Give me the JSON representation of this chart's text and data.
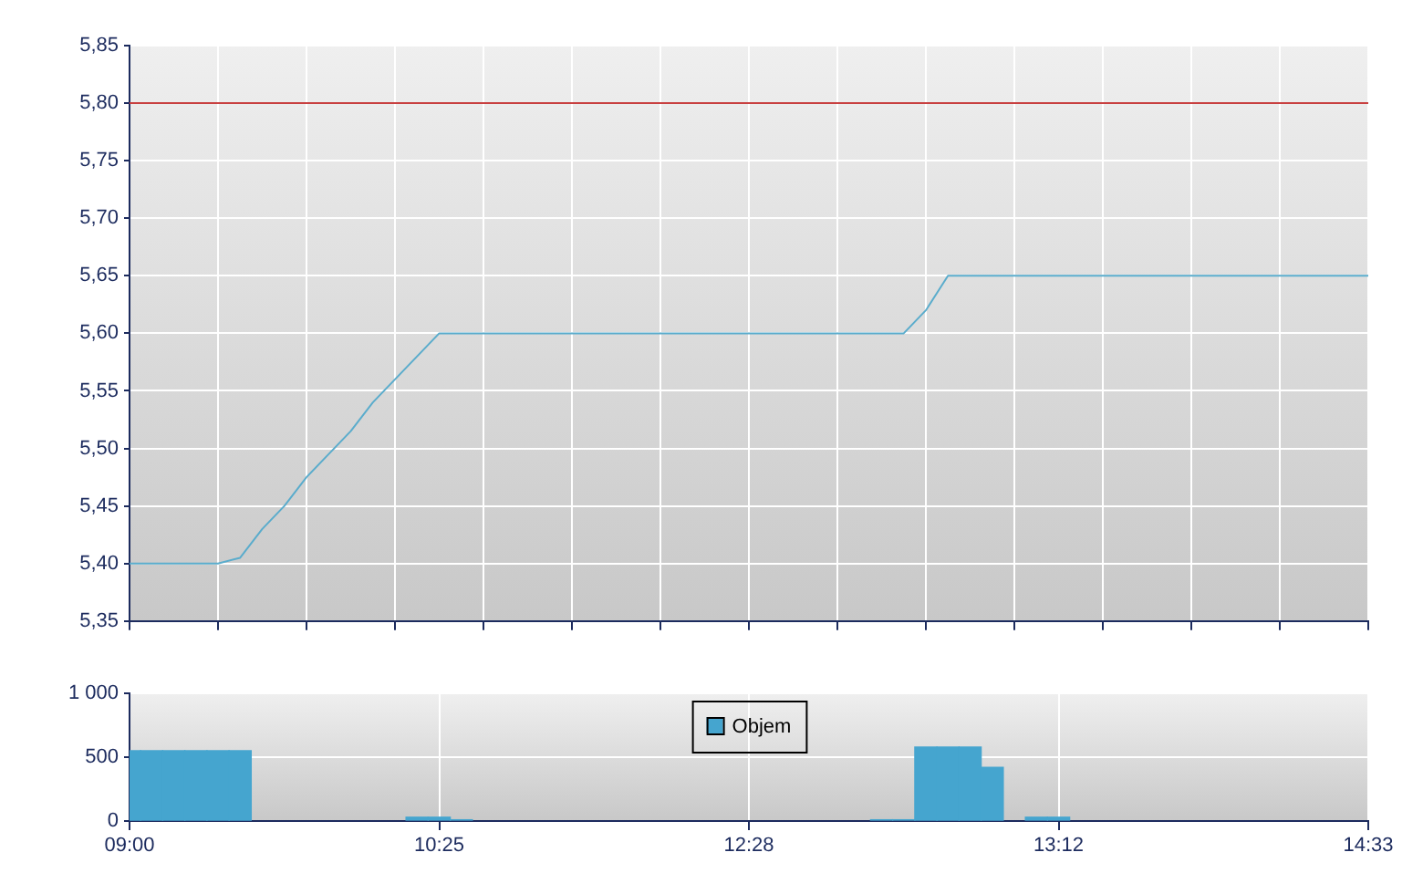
{
  "chart_data": [
    {
      "type": "line",
      "categories": [
        null,
        null,
        null,
        null,
        null,
        null,
        null,
        null,
        null,
        null,
        null,
        null,
        null,
        null,
        null,
        null,
        null,
        null,
        null,
        null,
        null,
        null,
        null,
        null,
        null,
        null,
        null,
        null,
        null,
        null,
        null,
        null,
        null,
        null,
        null,
        null,
        null,
        null,
        null,
        null,
        null,
        null,
        null,
        null,
        null,
        null,
        null,
        null,
        null,
        null,
        null,
        null,
        null,
        null,
        null,
        null,
        null
      ],
      "series": [
        {
          "color": "#5aaccc",
          "values": [
            5.4,
            5.4,
            5.4,
            5.4,
            5.4,
            5.405,
            5.43,
            5.45,
            5.475,
            5.495,
            5.515,
            5.54,
            5.56,
            5.58,
            5.6,
            5.6,
            5.6,
            5.6,
            5.6,
            5.6,
            5.6,
            5.6,
            5.6,
            5.6,
            5.6,
            5.6,
            5.6,
            5.6,
            5.6,
            5.6,
            5.6,
            5.6,
            5.6,
            5.6,
            5.6,
            5.6,
            5.62,
            5.65,
            5.65,
            5.65,
            5.65,
            5.65,
            5.65,
            5.65,
            5.65,
            5.65,
            5.65,
            5.65,
            5.65,
            5.65,
            5.65,
            5.65,
            5.65,
            5.65,
            5.65,
            5.65,
            5.65
          ]
        }
      ],
      "ylim": [
        5.35,
        5.85
      ],
      "yticks": [
        {
          "value": 5.35,
          "label": "5,35"
        },
        {
          "value": 5.4,
          "label": "5,40"
        },
        {
          "value": 5.45,
          "label": "5,45"
        },
        {
          "value": 5.5,
          "label": "5,50"
        },
        {
          "value": 5.55,
          "label": "5,55"
        },
        {
          "value": 5.6,
          "label": "5,60"
        },
        {
          "value": 5.65,
          "label": "5,65"
        },
        {
          "value": 5.7,
          "label": "5,70"
        },
        {
          "value": 5.75,
          "label": "5,75"
        },
        {
          "value": 5.8,
          "label": "5,80"
        },
        {
          "value": 5.85,
          "label": "5,85"
        }
      ],
      "ref_lines": [
        {
          "axis": "y",
          "value": 5.8,
          "color": "#c84040"
        }
      ],
      "grid": true,
      "marker": "none",
      "tick_labels": "y"
    },
    {
      "type": "bar",
      "categories": [
        "09:00",
        null,
        null,
        null,
        null,
        null,
        null,
        null,
        null,
        null,
        null,
        null,
        null,
        null,
        "10:25",
        null,
        null,
        null,
        null,
        null,
        null,
        null,
        null,
        null,
        null,
        null,
        null,
        null,
        "12:28",
        null,
        null,
        null,
        null,
        null,
        null,
        null,
        null,
        null,
        null,
        null,
        null,
        null,
        "13:12",
        null,
        null,
        null,
        null,
        null,
        null,
        null,
        null,
        null,
        null,
        null,
        null,
        null,
        "14:33"
      ],
      "series": [
        {
          "name": "Objem",
          "color": "#45a5cf",
          "values": [
            550,
            550,
            550,
            550,
            550,
            550,
            null,
            null,
            null,
            null,
            null,
            null,
            null,
            30,
            30,
            10,
            null,
            null,
            null,
            null,
            null,
            null,
            null,
            null,
            null,
            null,
            null,
            null,
            null,
            null,
            null,
            null,
            null,
            null,
            10,
            10,
            580,
            580,
            580,
            420,
            null,
            30,
            30,
            null,
            null,
            null,
            null,
            null,
            null,
            null,
            null,
            null,
            null,
            null,
            null,
            null,
            null
          ]
        }
      ],
      "ylim": [
        0,
        1000
      ],
      "yticks": [
        0,
        500,
        {
          "value": 1000,
          "label": "1 000"
        }
      ],
      "grid": true,
      "legend": "top"
    }
  ]
}
